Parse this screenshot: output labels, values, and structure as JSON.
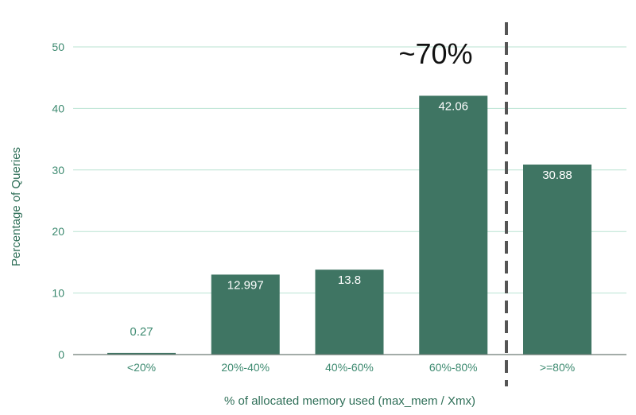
{
  "chart_data": {
    "type": "bar",
    "categories": [
      "<20%",
      "20%-40%",
      "40%-60%",
      "60%-80%",
      ">=80%"
    ],
    "values": [
      0.27,
      12.997,
      13.8,
      42.06,
      30.88
    ],
    "data_labels": [
      "0.27",
      "12.997",
      "13.8",
      "42.06",
      "30.88"
    ],
    "title": "",
    "xlabel": "% of allocated memory used (max_mem / Xmx)",
    "ylabel": "Percentage of Queries",
    "ylim": [
      0,
      50
    ],
    "yticks": [
      0,
      10,
      20,
      30,
      40,
      50
    ],
    "grid": true,
    "legend": "none",
    "annotation": {
      "text": "~70%"
    },
    "threshold_line": {
      "style": "dashed",
      "between": [
        "60%-80%",
        ">=80%"
      ]
    },
    "colors": {
      "bar": "#3f7563",
      "grid": "#b9e3d2",
      "axis": "#6c7a74",
      "tick": "#3d8a70",
      "title": "#2f6f58",
      "label_inside": "#ffffff",
      "label_outside": "#3d8a70",
      "threshold": "#555555",
      "annotation": "#111111"
    }
  }
}
